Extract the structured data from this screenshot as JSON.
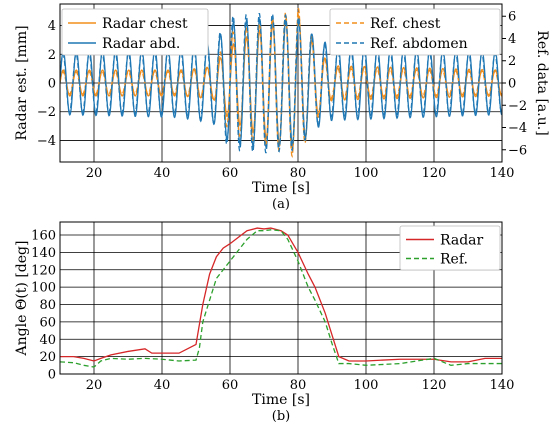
{
  "chart_data": [
    {
      "panel": "a",
      "caption": "(a)",
      "type": "line",
      "xlabel": "Time [s]",
      "ylabel": "Radar est. [mm]",
      "ylabel_right": "Ref. data [a.u.]",
      "xlim": [
        10,
        140
      ],
      "ylim": [
        -5.5,
        5.5
      ],
      "ylim_right": [
        -7.1,
        7.1
      ],
      "xticks": [
        20,
        40,
        60,
        80,
        100,
        120,
        140
      ],
      "yticks": [
        -4,
        -2,
        0,
        2,
        4
      ],
      "yticks_right": [
        -6,
        -4,
        -2,
        0,
        2,
        4,
        6
      ],
      "grid": true,
      "legend_left": [
        {
          "name": "Radar chest",
          "color": "#f28e1c",
          "dash": "solid"
        },
        {
          "name": "Radar abd.",
          "color": "#1f77b4",
          "dash": "solid"
        }
      ],
      "legend_right": [
        {
          "name": "Ref. chest",
          "color": "#f28e1c",
          "dash": "dashed"
        },
        {
          "name": "Ref. abdomen",
          "color": "#1f77b4",
          "dash": "dashed"
        }
      ],
      "series": [
        {
          "name": "Radar chest",
          "axis": "left",
          "color": "#f28e1c",
          "dash": "solid",
          "breathing_period_s": 3.85,
          "amplitude_envelope": [
            [
              10,
              0.9
            ],
            [
              45,
              0.9
            ],
            [
              55,
              1.1
            ],
            [
              60,
              2.6
            ],
            [
              70,
              3.8
            ],
            [
              80,
              4.8
            ],
            [
              85,
              2.5
            ],
            [
              90,
              1.2
            ],
            [
              140,
              0.9
            ]
          ]
        },
        {
          "name": "Radar abd.",
          "axis": "left",
          "color": "#1f77b4",
          "dash": "solid",
          "breathing_period_s": 3.85,
          "amplitude_envelope": [
            [
              10,
              2.2
            ],
            [
              45,
              2.4
            ],
            [
              55,
              2.8
            ],
            [
              60,
              4.2
            ],
            [
              70,
              4.5
            ],
            [
              80,
              4.3
            ],
            [
              85,
              3.2
            ],
            [
              90,
              2.6
            ],
            [
              140,
              2.2
            ]
          ]
        },
        {
          "name": "Ref. chest",
          "axis": "right",
          "color": "#f28e1c",
          "dash": "dashed",
          "breathing_period_s": 3.85,
          "amplitude_envelope": [
            [
              10,
              1.0
            ],
            [
              45,
              1.0
            ],
            [
              55,
              1.5
            ],
            [
              60,
              4.5
            ],
            [
              70,
              5.5
            ],
            [
              80,
              6.8
            ],
            [
              85,
              3.5
            ],
            [
              90,
              1.3
            ],
            [
              140,
              1.0
            ]
          ]
        },
        {
          "name": "Ref. abdomen",
          "axis": "right",
          "color": "#1f77b4",
          "dash": "dashed",
          "breathing_period_s": 3.85,
          "amplitude_envelope": [
            [
              10,
              2.6
            ],
            [
              45,
              2.8
            ],
            [
              55,
              3.5
            ],
            [
              60,
              6.0
            ],
            [
              70,
              6.3
            ],
            [
              80,
              6.0
            ],
            [
              85,
              4.0
            ],
            [
              90,
              3.0
            ],
            [
              140,
              2.6
            ]
          ]
        }
      ]
    },
    {
      "panel": "b",
      "caption": "(b)",
      "type": "line",
      "xlabel": "Time [s]",
      "ylabel": "Angle Θ(t) [deg]",
      "xlim": [
        10,
        140
      ],
      "ylim": [
        0,
        175
      ],
      "xticks": [
        20,
        40,
        60,
        80,
        100,
        120,
        140
      ],
      "yticks": [
        0,
        20,
        40,
        60,
        80,
        100,
        120,
        140,
        160
      ],
      "grid": true,
      "legend": [
        {
          "name": "Radar",
          "color": "#d62728",
          "dash": "solid"
        },
        {
          "name": "Ref.",
          "color": "#2ca02c",
          "dash": "dashed"
        }
      ],
      "series": [
        {
          "name": "Radar",
          "color": "#d62728",
          "dash": "solid",
          "x": [
            10,
            14,
            17,
            20,
            22,
            25,
            30,
            35,
            37,
            40,
            45,
            48,
            50,
            52,
            54,
            56,
            58,
            60,
            62,
            65,
            68,
            70,
            72,
            75,
            77,
            80,
            83,
            85,
            88,
            90,
            92,
            95,
            100,
            110,
            120,
            125,
            130,
            135,
            140
          ],
          "y": [
            20,
            20,
            18,
            15,
            18,
            22,
            26,
            29,
            24,
            24,
            24,
            30,
            34,
            80,
            115,
            135,
            145,
            150,
            156,
            165,
            168,
            167,
            168,
            165,
            160,
            140,
            115,
            100,
            70,
            45,
            20,
            15,
            15,
            17,
            17,
            14,
            14,
            18,
            18
          ]
        },
        {
          "name": "Ref.",
          "color": "#2ca02c",
          "dash": "dashed",
          "x": [
            10,
            14,
            17,
            20,
            22,
            25,
            30,
            35,
            40,
            45,
            50,
            51,
            52,
            54,
            56,
            58,
            60,
            62,
            65,
            68,
            70,
            72,
            75,
            77,
            80,
            83,
            85,
            88,
            90,
            92,
            95,
            100,
            110,
            120,
            125,
            130,
            140
          ],
          "y": [
            14,
            13,
            10,
            8,
            15,
            18,
            17,
            18,
            17,
            15,
            16,
            30,
            60,
            85,
            110,
            120,
            130,
            140,
            155,
            165,
            165,
            166,
            165,
            155,
            130,
            100,
            85,
            60,
            35,
            12,
            12,
            10,
            12,
            18,
            10,
            12,
            12
          ]
        }
      ]
    }
  ]
}
